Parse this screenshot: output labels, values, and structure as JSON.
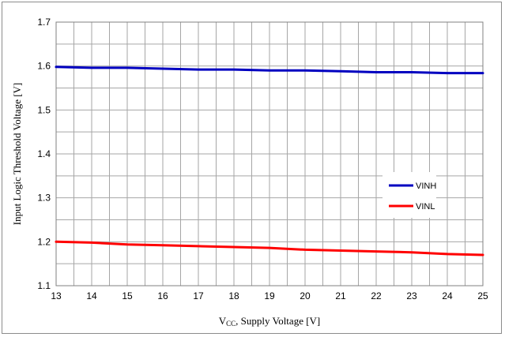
{
  "chart_data": {
    "type": "line",
    "title": "",
    "xlabel_main": "V",
    "xlabel_sub": "CC",
    "xlabel_rest": ", Supply Voltage [V]",
    "ylabel": "Input Logic Threshold Voltage  [V]",
    "xlim": [
      13,
      25
    ],
    "ylim": [
      1.1,
      1.7
    ],
    "x_ticks": [
      13,
      14,
      15,
      16,
      17,
      18,
      19,
      20,
      21,
      22,
      23,
      24,
      25
    ],
    "y_ticks": [
      "1.1",
      "1.2",
      "1.3",
      "1.4",
      "1.5",
      "1.6",
      "1.7"
    ],
    "x_minor_step": 0.5,
    "y_minor_step": 0.05,
    "grid": true,
    "legend_position": "right",
    "x": [
      13,
      14,
      15,
      16,
      17,
      18,
      19,
      20,
      21,
      22,
      23,
      24,
      25
    ],
    "series": [
      {
        "name": "VINH",
        "color": "#0000c0",
        "values": [
          1.598,
          1.596,
          1.596,
          1.594,
          1.592,
          1.592,
          1.59,
          1.59,
          1.588,
          1.586,
          1.586,
          1.584,
          1.584
        ]
      },
      {
        "name": "VINL",
        "color": "#ff0000",
        "values": [
          1.2,
          1.198,
          1.194,
          1.192,
          1.19,
          1.188,
          1.186,
          1.182,
          1.18,
          1.178,
          1.176,
          1.172,
          1.17
        ]
      }
    ]
  }
}
